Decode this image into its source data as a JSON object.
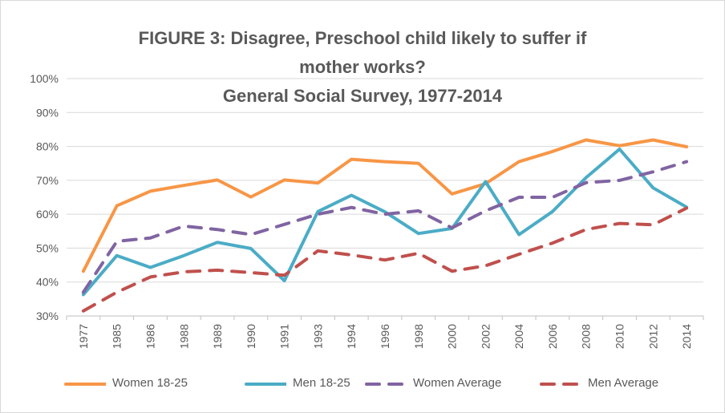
{
  "chart_data": {
    "type": "line",
    "title_lines": [
      "FIGURE 3: Disagree, Preschool child likely to suffer if",
      "mother works?",
      "General Social Survey, 1977-2014"
    ],
    "categories": [
      "1977",
      "1985",
      "1986",
      "1988",
      "1989",
      "1990",
      "1991",
      "1993",
      "1994",
      "1996",
      "1998",
      "2000",
      "2002",
      "2004",
      "2006",
      "2008",
      "2010",
      "2012",
      "2014"
    ],
    "y_ticks": [
      "30%",
      "40%",
      "50%",
      "60%",
      "70%",
      "80%",
      "90%",
      "100%"
    ],
    "ylim": [
      30,
      100
    ],
    "grid": true,
    "legend_position": "bottom",
    "series": [
      {
        "name": "Women 18-25",
        "color": "#f79646",
        "dash": "solid",
        "values": [
          43.2,
          62.5,
          66.8,
          68.5,
          70.1,
          65.1,
          70.1,
          69.2,
          76.2,
          75.5,
          75.0,
          66.0,
          69.0,
          75.5,
          78.5,
          81.9,
          80.2,
          81.9,
          79.9
        ]
      },
      {
        "name": "Men 18-25",
        "color": "#4bacc6",
        "dash": "solid",
        "values": [
          36.3,
          47.8,
          44.3,
          47.8,
          51.7,
          49.9,
          40.4,
          60.8,
          65.6,
          60.7,
          54.3,
          55.8,
          69.6,
          54.0,
          60.8,
          70.8,
          79.2,
          67.8,
          62.1
        ]
      },
      {
        "name": "Women Average",
        "color": "#8064a2",
        "dash": "dashed",
        "values": [
          37.0,
          52.0,
          53.0,
          56.5,
          55.5,
          54.0,
          57.0,
          60.0,
          62.0,
          60.0,
          61.0,
          56.0,
          61.0,
          65.0,
          65.0,
          69.3,
          70.0,
          72.5,
          75.5
        ]
      },
      {
        "name": "Men Average",
        "color": "#c0504d",
        "dash": "dashed",
        "values": [
          31.5,
          37.0,
          41.5,
          43.0,
          43.5,
          42.8,
          42.0,
          49.2,
          48.0,
          46.5,
          48.5,
          43.2,
          44.8,
          48.2,
          51.5,
          55.5,
          57.3,
          56.9,
          61.8
        ]
      }
    ]
  }
}
